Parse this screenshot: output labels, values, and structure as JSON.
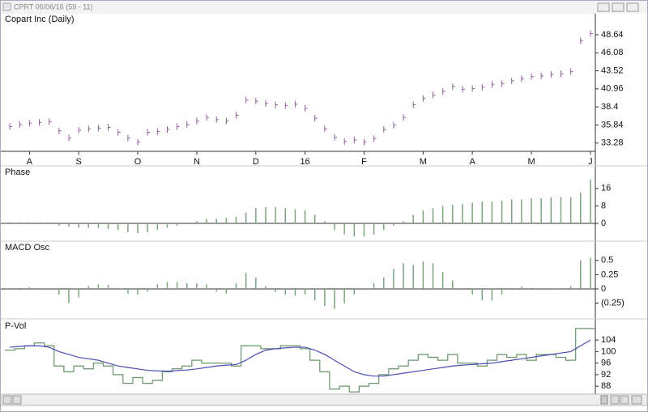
{
  "window": {
    "title": "CPRT 06/06/16 (59 - 11)"
  },
  "chart_data": [
    {
      "type": "price_bar",
      "title": "Copart Inc (Daily)",
      "color": "#8c5c96",
      "categories": [
        null,
        null,
        "A",
        null,
        null,
        null,
        null,
        "S",
        null,
        null,
        null,
        null,
        null,
        "O",
        null,
        null,
        null,
        null,
        null,
        "N",
        null,
        null,
        null,
        null,
        null,
        "D",
        null,
        null,
        null,
        null,
        "16",
        null,
        null,
        null,
        null,
        null,
        "F",
        null,
        null,
        null,
        null,
        null,
        "M",
        null,
        null,
        null,
        null,
        "A",
        null,
        null,
        null,
        null,
        null,
        "M",
        null,
        null,
        null,
        null,
        null,
        "J"
      ],
      "values": [
        35.6,
        35.9,
        36.1,
        36.2,
        36.3,
        35.0,
        34.0,
        35.1,
        35.3,
        35.4,
        35.5,
        34.8,
        34.0,
        33.4,
        34.8,
        34.9,
        35.2,
        35.6,
        35.9,
        36.4,
        36.9,
        36.6,
        36.4,
        37.2,
        39.4,
        39.2,
        38.9,
        38.7,
        38.6,
        38.8,
        38.2,
        36.8,
        35.3,
        34.1,
        33.5,
        33.7,
        33.4,
        33.9,
        35.2,
        35.8,
        36.9,
        38.7,
        39.6,
        40.1,
        40.6,
        41.3,
        40.9,
        41.0,
        41.2,
        41.6,
        41.7,
        42.1,
        42.4,
        42.7,
        42.8,
        43.0,
        43.1,
        43.4,
        47.8,
        48.8
      ],
      "ylim": [
        32.1,
        51.5
      ],
      "yticks": [
        33.28,
        35.84,
        38.4,
        40.96,
        43.52,
        46.08,
        48.64
      ]
    },
    {
      "type": "bar",
      "title": "Phase",
      "color": "#7ea27e",
      "values": [
        0.5,
        0.5,
        0.5,
        0.5,
        0.5,
        -1,
        -1.5,
        -2,
        -2,
        -2,
        -2.5,
        -3,
        -4,
        -4.5,
        -4,
        -3,
        -2,
        -1,
        0,
        1,
        2,
        2,
        2.5,
        3,
        5,
        7,
        7.5,
        7.5,
        7,
        6.5,
        6,
        4,
        1,
        -3,
        -5,
        -6,
        -6,
        -5,
        -3,
        -1,
        1,
        4,
        6,
        7,
        8,
        8.5,
        9,
        9.5,
        10,
        10,
        10.5,
        11,
        11,
        11.5,
        11.5,
        12,
        12,
        12,
        14,
        20
      ],
      "ylim": [
        -5.9,
        26.3
      ],
      "yticks": [
        0,
        8,
        16
      ]
    },
    {
      "type": "bar",
      "title": "MACD Osc",
      "color": "#7ea27e",
      "values": [
        0.02,
        0.02,
        0.03,
        0.02,
        0,
        -0.1,
        -0.25,
        -0.15,
        0.05,
        0.08,
        0.07,
        0.02,
        -0.08,
        -0.1,
        -0.05,
        0.08,
        0.12,
        0.12,
        0.1,
        0.1,
        0.08,
        -0.05,
        -0.08,
        0.1,
        0.28,
        0.2,
        0.05,
        -0.05,
        -0.1,
        -0.12,
        -0.1,
        -0.2,
        -0.3,
        -0.35,
        -0.25,
        -0.1,
        0,
        0.1,
        0.2,
        0.35,
        0.45,
        0.42,
        0.48,
        0.45,
        0.3,
        0.15,
        0,
        -0.1,
        -0.2,
        -0.2,
        -0.1,
        0.02,
        0.04,
        0.02,
        0,
        -0.02,
        0.02,
        0.05,
        0.5,
        0.55
      ],
      "ylim": [
        -0.47,
        0.81
      ],
      "yticks": [
        {
          "value": -0.25,
          "label": "(0.25)"
        },
        0,
        0.25,
        0.5
      ]
    },
    {
      "type": "line",
      "title": "P-Vol",
      "series": [
        {
          "color": "#6a946a",
          "step": true,
          "values": [
            100.5,
            101,
            102,
            103,
            102,
            95,
            93,
            95,
            94,
            96,
            95,
            92,
            89,
            91,
            89,
            90,
            93,
            94,
            95,
            97,
            96,
            96,
            96,
            95,
            102,
            102,
            101,
            101,
            102,
            102,
            101,
            97,
            93,
            87,
            88,
            86,
            88,
            89,
            92,
            94,
            95,
            97,
            99,
            98,
            97,
            99,
            96,
            96,
            95,
            97,
            99,
            98,
            99,
            97,
            99,
            99,
            98,
            97,
            108,
            108
          ]
        },
        {
          "color": "#4a4ab4",
          "step": false,
          "values": [
            101.5,
            101.8,
            102,
            102,
            101.5,
            100,
            99,
            98,
            97.5,
            97,
            96,
            95,
            94.5,
            94,
            93.5,
            93.3,
            93.2,
            93.4,
            93.6,
            94,
            94.5,
            95,
            95.3,
            95.5,
            97,
            99,
            100.5,
            101,
            101.3,
            101.5,
            101.5,
            100.5,
            99,
            97,
            95,
            93,
            92,
            91.5,
            91.5,
            92,
            92.5,
            93,
            93.5,
            94,
            94.5,
            95,
            95.3,
            95.5,
            95.8,
            96,
            96.5,
            97,
            97.5,
            98,
            98.5,
            99,
            99.5,
            100,
            102,
            104
          ]
        }
      ],
      "ylim": [
        85.8,
        110.5
      ],
      "yticks": [
        88,
        92,
        96,
        100,
        104
      ]
    }
  ]
}
